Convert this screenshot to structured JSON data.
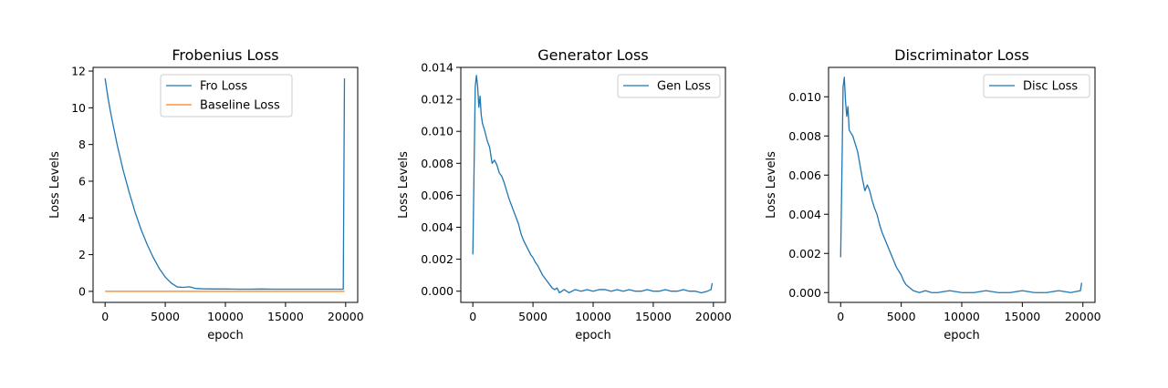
{
  "chart_data": [
    {
      "type": "line",
      "title": "Frobenius Loss",
      "xlabel": "epoch",
      "ylabel": "Loss Levels",
      "xlim": [
        -1000,
        21000
      ],
      "ylim": [
        -0.6,
        12.2
      ],
      "xticks": [
        0,
        5000,
        10000,
        15000,
        20000
      ],
      "yticks": [
        0,
        2,
        4,
        6,
        8,
        10,
        12
      ],
      "tick_decimals": 0,
      "legend_position": "top-center",
      "series": [
        {
          "name": "Fro Loss",
          "color": "#1f77b4",
          "x": [
            0,
            250,
            500,
            1000,
            1500,
            2000,
            2500,
            3000,
            3500,
            4000,
            4500,
            5000,
            5500,
            6000,
            6500,
            7000,
            7500,
            8000,
            9000,
            10000,
            11000,
            12000,
            13000,
            14000,
            15000,
            16000,
            17000,
            18000,
            19000,
            19800,
            19850,
            19900
          ],
          "y": [
            11.6,
            10.5,
            9.6,
            8.0,
            6.6,
            5.4,
            4.3,
            3.35,
            2.55,
            1.85,
            1.25,
            0.78,
            0.45,
            0.24,
            0.22,
            0.25,
            0.16,
            0.14,
            0.13,
            0.13,
            0.12,
            0.12,
            0.13,
            0.12,
            0.12,
            0.12,
            0.12,
            0.12,
            0.12,
            0.12,
            6.0,
            11.6
          ]
        },
        {
          "name": "Baseline Loss",
          "color": "#ff7f0e",
          "x": [
            0,
            19900
          ],
          "y": [
            0.0,
            0.0
          ]
        }
      ]
    },
    {
      "type": "line",
      "title": "Generator Loss",
      "xlabel": "epoch",
      "ylabel": "Loss Levels",
      "xlim": [
        -1000,
        21000
      ],
      "ylim": [
        -0.0007,
        0.014
      ],
      "xticks": [
        0,
        5000,
        10000,
        15000,
        20000
      ],
      "yticks": [
        0.0,
        0.002,
        0.004,
        0.006,
        0.008,
        0.01,
        0.012,
        0.014
      ],
      "tick_decimals": 3,
      "legend_position": "top-right",
      "series": [
        {
          "name": "Gen Loss",
          "color": "#1f77b4",
          "x": [
            0,
            100,
            200,
            300,
            400,
            500,
            600,
            700,
            800,
            1000,
            1200,
            1400,
            1600,
            1800,
            2000,
            2200,
            2400,
            2600,
            2800,
            3000,
            3200,
            3400,
            3600,
            3800,
            4000,
            4200,
            4400,
            4600,
            4800,
            5000,
            5200,
            5400,
            5600,
            5800,
            6000,
            6200,
            6400,
            6600,
            6800,
            7000,
            7200,
            7400,
            7600,
            7800,
            8000,
            8500,
            9000,
            9500,
            10000,
            10500,
            11000,
            11500,
            12000,
            12500,
            13000,
            13500,
            14000,
            14500,
            15000,
            15500,
            16000,
            16500,
            17000,
            17500,
            18000,
            18500,
            19000,
            19500,
            19800,
            19900
          ],
          "y": [
            0.0023,
            0.0075,
            0.0128,
            0.0135,
            0.0128,
            0.0115,
            0.0122,
            0.011,
            0.0105,
            0.01,
            0.0094,
            0.009,
            0.008,
            0.0082,
            0.0079,
            0.0074,
            0.0072,
            0.0068,
            0.0063,
            0.0058,
            0.0054,
            0.005,
            0.0046,
            0.0042,
            0.0036,
            0.0032,
            0.0029,
            0.0026,
            0.0023,
            0.0021,
            0.0018,
            0.0016,
            0.0013,
            0.001,
            0.0008,
            0.0006,
            0.0004,
            0.0002,
            0.0001,
            0.0002,
            -0.0001,
            0.0,
            0.0001,
            0.0,
            -0.0001,
            0.0001,
            0.0,
            0.0001,
            0.0,
            0.0001,
            0.0001,
            0.0,
            0.0001,
            0.0,
            0.0001,
            0.0,
            0.0,
            0.0001,
            0.0,
            0.0,
            0.0001,
            0.0,
            0.0,
            0.0001,
            0.0,
            0.0,
            -0.0001,
            0.0,
            0.0001,
            0.0005
          ]
        }
      ]
    },
    {
      "type": "line",
      "title": "Discriminator Loss",
      "xlabel": "epoch",
      "ylabel": "Loss Levels",
      "xlim": [
        -1000,
        21000
      ],
      "ylim": [
        -0.0005,
        0.0115
      ],
      "xticks": [
        0,
        5000,
        10000,
        15000,
        20000
      ],
      "yticks": [
        0.0,
        0.002,
        0.004,
        0.006,
        0.008,
        0.01
      ],
      "tick_decimals": 3,
      "legend_position": "top-right",
      "series": [
        {
          "name": "Disc Loss",
          "color": "#1f77b4",
          "x": [
            0,
            100,
            200,
            300,
            400,
            500,
            600,
            700,
            800,
            1000,
            1200,
            1400,
            1600,
            1800,
            2000,
            2200,
            2400,
            2600,
            2800,
            3000,
            3200,
            3400,
            3600,
            3800,
            4000,
            4200,
            4400,
            4600,
            4800,
            5000,
            5200,
            5400,
            5600,
            5800,
            6000,
            6500,
            7000,
            7500,
            8000,
            9000,
            10000,
            11000,
            12000,
            13000,
            14000,
            15000,
            16000,
            17000,
            18000,
            19000,
            19800,
            19900
          ],
          "y": [
            0.0018,
            0.006,
            0.0105,
            0.011,
            0.0098,
            0.009,
            0.0095,
            0.0083,
            0.0082,
            0.008,
            0.0076,
            0.0072,
            0.0065,
            0.0058,
            0.0052,
            0.0055,
            0.0052,
            0.0047,
            0.0043,
            0.004,
            0.0035,
            0.0031,
            0.0028,
            0.0025,
            0.0022,
            0.0019,
            0.0016,
            0.0013,
            0.0011,
            0.0009,
            0.0006,
            0.0004,
            0.0003,
            0.0002,
            0.0001,
            0.0,
            0.0001,
            0.0,
            0.0,
            0.0001,
            0.0,
            0.0,
            0.0001,
            0.0,
            0.0,
            0.0001,
            0.0,
            0.0,
            0.0001,
            0.0,
            0.0001,
            0.0005
          ]
        }
      ]
    }
  ]
}
